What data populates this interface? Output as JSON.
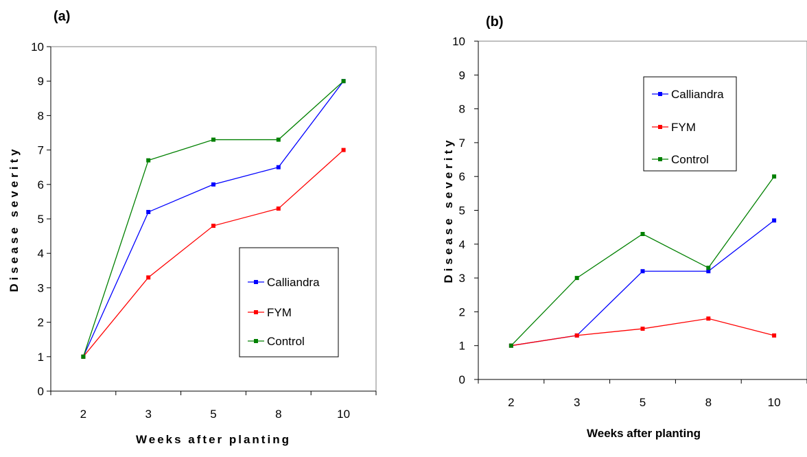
{
  "chart_data": [
    {
      "type": "line",
      "panel_label": "(a)",
      "title": "",
      "categories": [
        "2",
        "3",
        "5",
        "8",
        "10"
      ],
      "xlabel": "Weeks after planting",
      "ylabel": "Disease severity",
      "ylim": [
        0,
        10
      ],
      "yticks": [
        "0",
        "1",
        "2",
        "3",
        "4",
        "5",
        "6",
        "7",
        "8",
        "9",
        "10"
      ],
      "grid": false,
      "legend_position": "bottom-right",
      "series": [
        {
          "name": "Calliandra",
          "color": "#0000ff",
          "values": [
            1,
            5.2,
            6.0,
            6.5,
            9.0
          ]
        },
        {
          "name": "FYM",
          "color": "#ff0000",
          "values": [
            1,
            3.3,
            4.8,
            5.3,
            7.0
          ]
        },
        {
          "name": "Control",
          "color": "#008000",
          "values": [
            1,
            6.7,
            7.3,
            7.3,
            9.0
          ]
        }
      ]
    },
    {
      "type": "line",
      "panel_label": "(b)",
      "title": "",
      "categories": [
        "2",
        "3",
        "5",
        "8",
        "10"
      ],
      "xlabel": "Weeks after planting",
      "ylabel": "Disease severity",
      "ylim": [
        0,
        10
      ],
      "yticks": [
        "0",
        "1",
        "2",
        "3",
        "4",
        "5",
        "6",
        "7",
        "8",
        "9",
        "10"
      ],
      "grid": false,
      "legend_position": "top-right",
      "series": [
        {
          "name": "Calliandra",
          "color": "#0000ff",
          "values": [
            1,
            1.3,
            3.2,
            3.2,
            4.7
          ]
        },
        {
          "name": "FYM",
          "color": "#ff0000",
          "values": [
            1,
            1.3,
            1.5,
            1.8,
            1.3
          ]
        },
        {
          "name": "Control",
          "color": "#008000",
          "values": [
            1,
            3.0,
            4.3,
            3.3,
            6.0
          ]
        }
      ]
    }
  ]
}
